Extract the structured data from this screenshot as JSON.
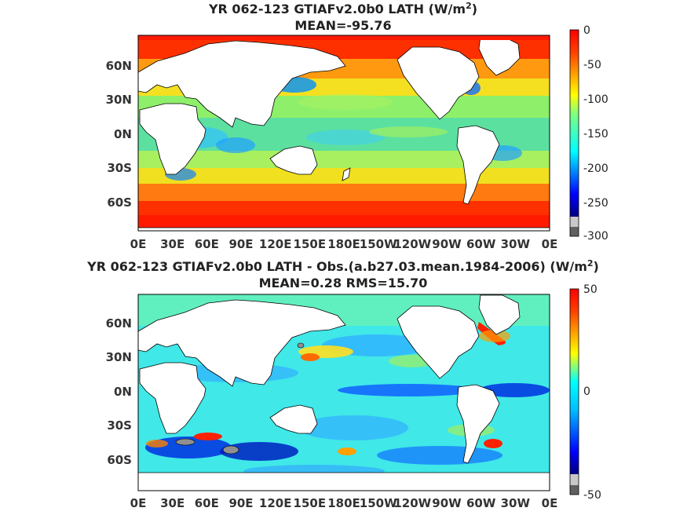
{
  "panels": [
    {
      "title_line1": "YR 062-123 GTIAFv2.0b0  LATH (W/m",
      "title_sup": "2",
      "title_close": ")",
      "title_line2": "MEAN=-95.76",
      "lat_labels": [
        "60N",
        "30N",
        "0N",
        "30S",
        "60S"
      ],
      "lon_labels": [
        "0E",
        "30E",
        "60E",
        "90E",
        "120E",
        "150E",
        "180E",
        "150W",
        "120W",
        "90W",
        "60W",
        "30W",
        "0E"
      ],
      "colorbar": {
        "min": -300,
        "max": 0,
        "labels": [
          "0",
          "-50",
          "-100",
          "-150",
          "-200",
          "-250",
          "-300"
        ]
      }
    },
    {
      "title_line1": "YR 062-123 GTIAFv2.0b0 LATH - Obs.(a.b27.03.mean.1984-2006) (W/m",
      "title_sup": "2",
      "title_close": ")",
      "title_line2": "MEAN=0.28 RMS=15.70",
      "lat_labels": [
        "60N",
        "30N",
        "0N",
        "30S",
        "60S"
      ],
      "lon_labels": [
        "0E",
        "30E",
        "60E",
        "90E",
        "120E",
        "150E",
        "180E",
        "150W",
        "120W",
        "90W",
        "60W",
        "30W",
        "0E"
      ],
      "colorbar": {
        "min": -50,
        "max": 50,
        "labels": [
          "50",
          "",
          "0",
          "",
          "-50"
        ]
      }
    }
  ],
  "colormap": "jet",
  "land_color": "#ffffff",
  "missing_color": "#808080"
}
